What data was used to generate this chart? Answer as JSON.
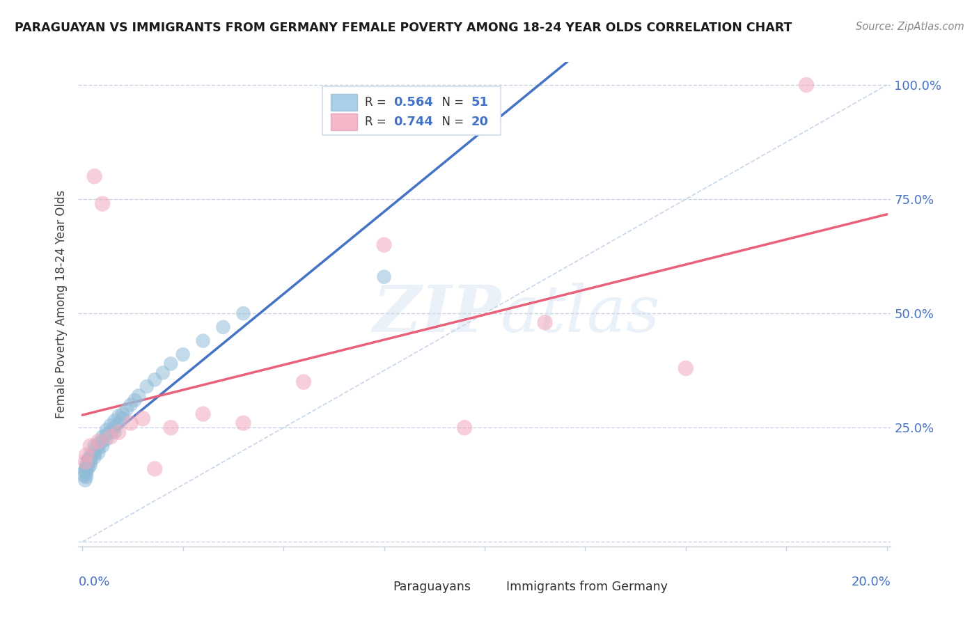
{
  "title": "PARAGUAYAN VS IMMIGRANTS FROM GERMANY FEMALE POVERTY AMONG 18-24 YEAR OLDS CORRELATION CHART",
  "source": "Source: ZipAtlas.com",
  "ylabel": "Female Poverty Among 18-24 Year Olds",
  "r_paraguayan": 0.564,
  "n_paraguayan": 51,
  "r_germany": 0.744,
  "n_germany": 20,
  "legend_color_paraguayan": "#a8d0e8",
  "legend_color_germany": "#f4b8c8",
  "scatter_color_paraguayan": "#90bcd8",
  "scatter_color_germany": "#f0a8bc",
  "line_color_paraguayan": "#4472c4",
  "line_color_germany": "#e8607a",
  "diagonal_color": "#c0d0e8",
  "text_color_blue": "#4472c4",
  "background_color": "#ffffff",
  "grid_color": "#c8d4e4",
  "paraguayan_x": [
    0.0005,
    0.0006,
    0.0007,
    0.0008,
    0.001,
    0.001,
    0.001,
    0.001,
    0.001,
    0.0015,
    0.0015,
    0.002,
    0.002,
    0.002,
    0.002,
    0.002,
    0.003,
    0.003,
    0.003,
    0.003,
    0.004,
    0.004,
    0.004,
    0.005,
    0.005,
    0.005,
    0.006,
    0.006,
    0.006,
    0.007,
    0.007,
    0.008,
    0.008,
    0.008,
    0.009,
    0.009,
    0.01,
    0.01,
    0.011,
    0.012,
    0.013,
    0.014,
    0.016,
    0.018,
    0.02,
    0.022,
    0.025,
    0.03,
    0.035,
    0.04,
    0.075
  ],
  "paraguayan_y": [
    0.145,
    0.155,
    0.135,
    0.16,
    0.15,
    0.165,
    0.142,
    0.158,
    0.17,
    0.175,
    0.162,
    0.18,
    0.168,
    0.19,
    0.175,
    0.185,
    0.2,
    0.192,
    0.185,
    0.21,
    0.205,
    0.215,
    0.195,
    0.22,
    0.23,
    0.21,
    0.235,
    0.225,
    0.245,
    0.24,
    0.255,
    0.25,
    0.265,
    0.24,
    0.26,
    0.275,
    0.28,
    0.27,
    0.29,
    0.3,
    0.31,
    0.32,
    0.34,
    0.355,
    0.37,
    0.39,
    0.41,
    0.44,
    0.47,
    0.5,
    0.58
  ],
  "germany_x": [
    0.0008,
    0.001,
    0.002,
    0.003,
    0.004,
    0.005,
    0.007,
    0.009,
    0.012,
    0.015,
    0.018,
    0.022,
    0.03,
    0.04,
    0.055,
    0.075,
    0.095,
    0.115,
    0.15,
    0.18
  ],
  "germany_y": [
    0.175,
    0.19,
    0.21,
    0.8,
    0.22,
    0.74,
    0.23,
    0.24,
    0.26,
    0.27,
    0.16,
    0.25,
    0.28,
    0.26,
    0.35,
    0.65,
    0.25,
    0.48,
    0.38,
    1.0
  ],
  "xlim_min": 0.0,
  "xlim_max": 0.2,
  "ylim_min": 0.0,
  "ylim_max": 1.05
}
